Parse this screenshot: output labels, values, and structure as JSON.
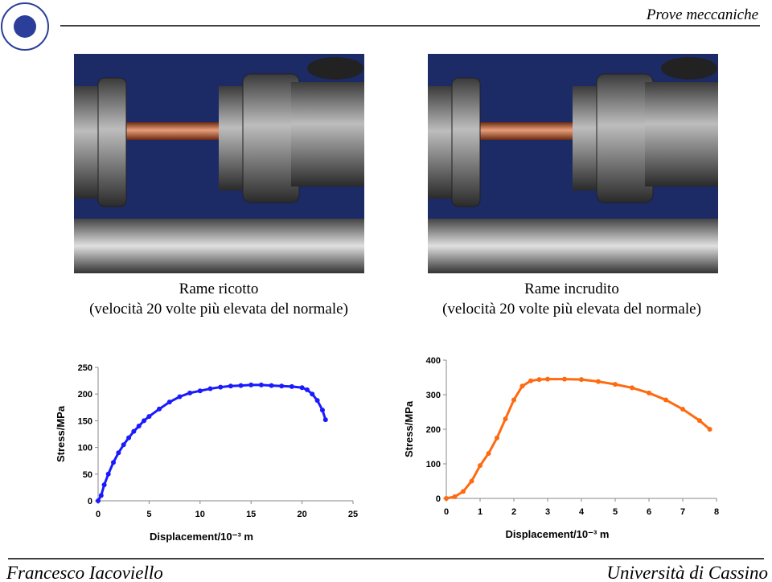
{
  "header": {
    "title": "Prove meccaniche"
  },
  "photos": [
    {
      "caption": "Rame ricotto",
      "subcaption": "(velocità 20 volte più elevata del normale)"
    },
    {
      "caption": "Rame incrudito",
      "subcaption": "(velocità 20 volte più elevata del normale)"
    }
  ],
  "chart_data": [
    {
      "type": "scatter",
      "x_label": "Displacement/10⁻³ m",
      "y_label": "Stress/MPa",
      "xlim": [
        0,
        25
      ],
      "ylim": [
        0,
        250
      ],
      "xticks": [
        0,
        5,
        10,
        15,
        20,
        25
      ],
      "yticks": [
        0,
        50,
        100,
        150,
        200,
        250
      ],
      "series": [
        {
          "color": "#1a1aff",
          "x": [
            0,
            0.3,
            0.6,
            1,
            1.5,
            2,
            2.5,
            3,
            3.5,
            4,
            4.5,
            5,
            6,
            7,
            8,
            9,
            10,
            11,
            12,
            13,
            14,
            15,
            16,
            17,
            18,
            19,
            20,
            20.5,
            21,
            21.5,
            22,
            22.3
          ],
          "values": [
            0,
            10,
            30,
            50,
            72,
            90,
            105,
            118,
            130,
            140,
            150,
            158,
            172,
            185,
            195,
            202,
            206,
            210,
            213,
            215,
            216,
            217,
            217,
            216,
            215,
            214,
            212,
            208,
            200,
            188,
            170,
            152
          ]
        }
      ]
    },
    {
      "type": "scatter",
      "x_label": "Displacement/10⁻³ m",
      "y_label": "Stress/MPa",
      "xlim": [
        0,
        8
      ],
      "ylim": [
        0,
        400
      ],
      "xticks": [
        0,
        1,
        2,
        3,
        4,
        5,
        6,
        7,
        8
      ],
      "yticks": [
        0,
        100,
        200,
        300,
        400
      ],
      "series": [
        {
          "color": "#ff6a10",
          "x": [
            0,
            0.25,
            0.5,
            0.75,
            1,
            1.25,
            1.5,
            1.75,
            2,
            2.25,
            2.5,
            2.75,
            3,
            3.5,
            4,
            4.5,
            5,
            5.5,
            6,
            6.5,
            7,
            7.5,
            7.8
          ],
          "values": [
            0,
            5,
            20,
            50,
            95,
            130,
            175,
            230,
            285,
            325,
            340,
            344,
            345,
            345,
            344,
            338,
            330,
            320,
            305,
            285,
            258,
            225,
            200
          ]
        }
      ]
    }
  ],
  "footer": {
    "author": "Francesco Iacoviello",
    "institution": "Università di Cassino"
  }
}
